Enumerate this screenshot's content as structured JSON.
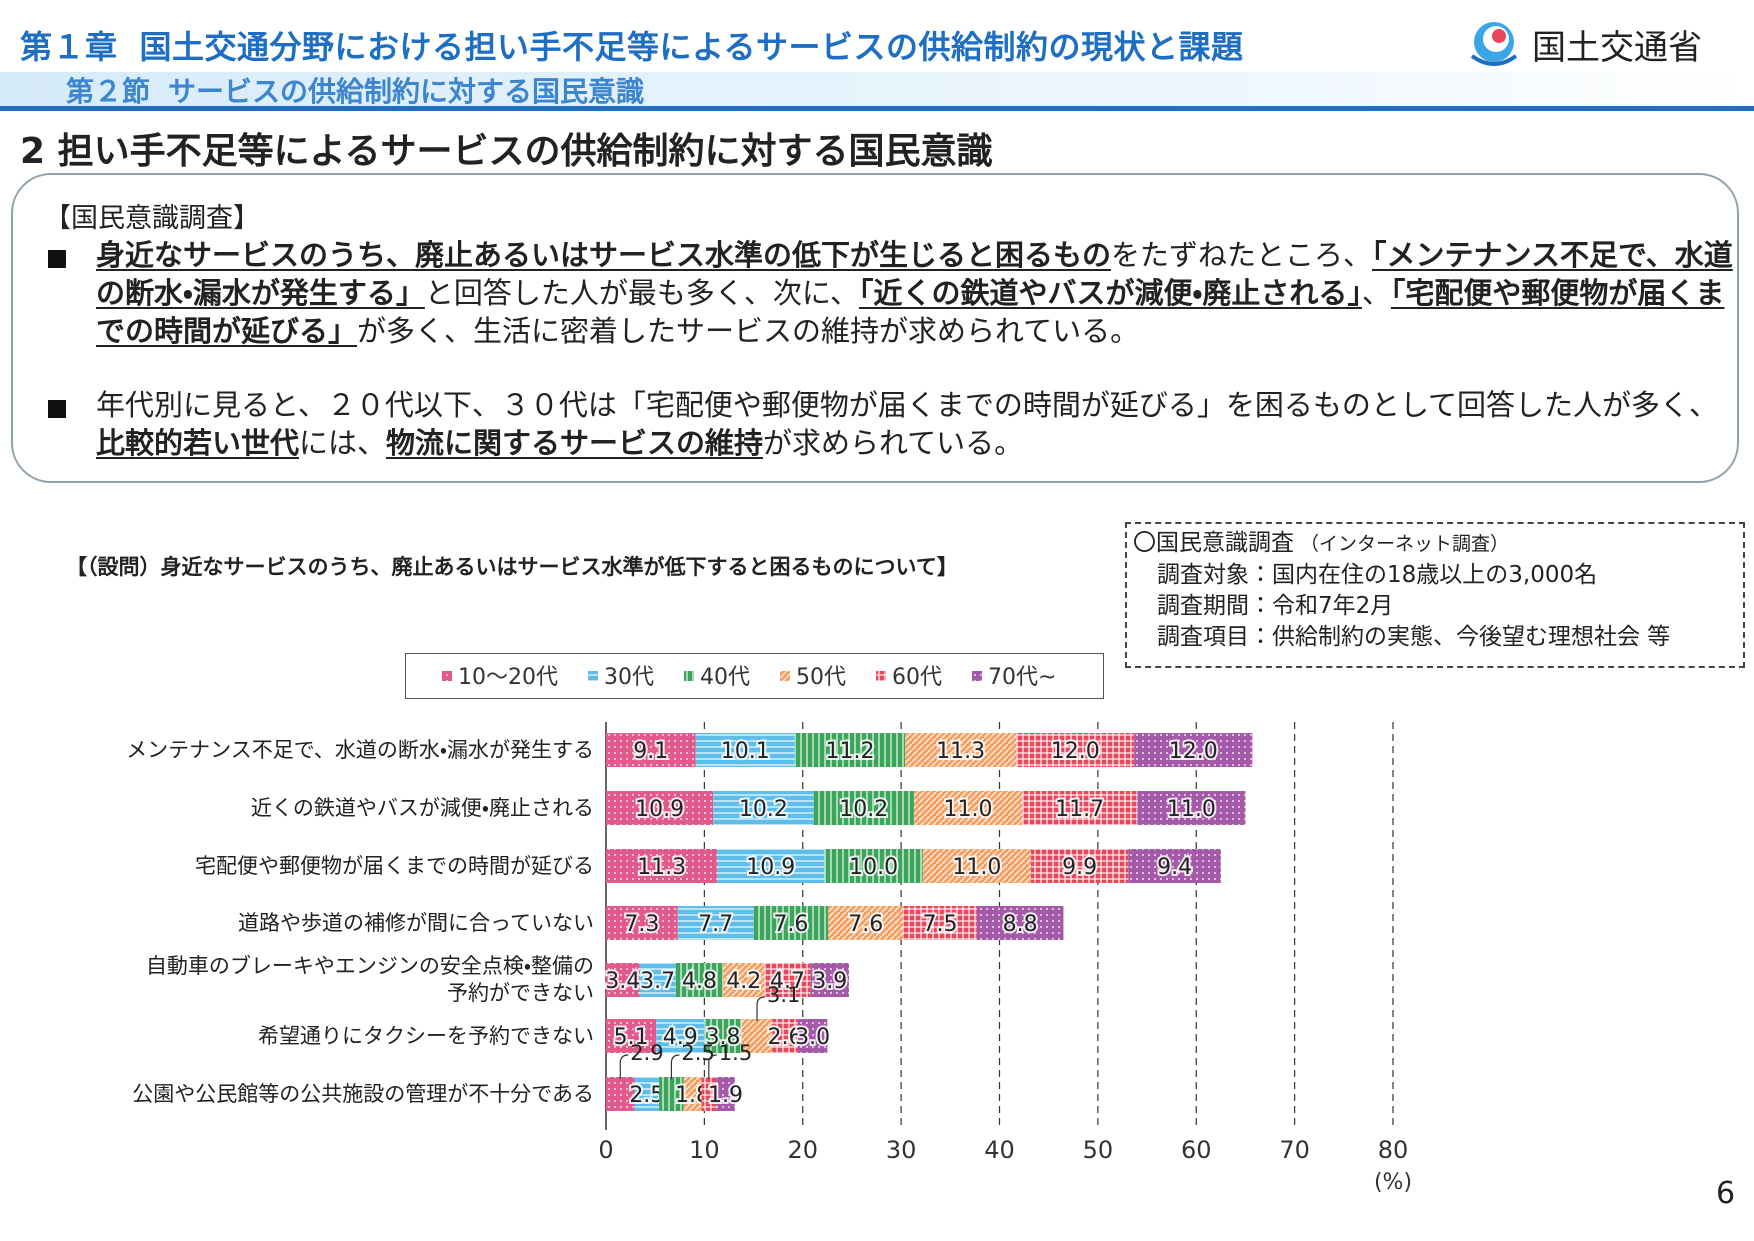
{
  "header": {
    "chapter": "第１章",
    "chapter_title": "国土交通分野における担い手不足等によるサービスの供給制約の現状と課題",
    "ministry": "国土交通省",
    "section": "第２節",
    "section_title": "サービスの供給制約に対する国民意識"
  },
  "heading": "2 担い手不足等によるサービスの供給制約に対する国民意識",
  "summary": {
    "label": "【国民意識調査】",
    "bullets": [
      [
        {
          "text": "身近なサービスのうち、廃止あるいはサービス水準の低下が生じると困るもの",
          "underline": true
        },
        {
          "text": "をたずねたところ、",
          "underline": false
        },
        {
          "text": "「メンテナンス不足で、水道の断水・漏水が発生する」",
          "underline": true
        },
        {
          "text": "と回答した人が最も多く、次に、",
          "underline": false
        },
        {
          "text": "「近くの鉄道やバスが減便・廃止される」",
          "underline": true
        },
        {
          "text": "、",
          "underline": false
        },
        {
          "text": "「宅配便や郵便物が届くまでの時間が延びる」",
          "underline": true
        },
        {
          "text": "が多く、生活に密着したサービスの維持が求められている。",
          "underline": false
        }
      ],
      [
        {
          "text": "年代別に見ると、２０代以下、３０代は「宅配便や郵便物が届くまでの時間が延びる」を困るものとして回答した人が多く、",
          "underline": false
        },
        {
          "text": "比較的若い世代",
          "underline": true
        },
        {
          "text": "には、",
          "underline": false
        },
        {
          "text": "物流に関するサービスの維持",
          "underline": true
        },
        {
          "text": "が求められている。",
          "underline": false
        }
      ]
    ]
  },
  "survey": {
    "title": "〇国民意識調査",
    "note": "（インターネット調査）",
    "items": [
      "調査対象：国内在住の18歳以上の3,000名",
      "調査期間：令和7年2月",
      "調査項目：供給制約の実態、今後望む理想社会 等"
    ]
  },
  "page_number": "6",
  "chart_data": {
    "type": "bar",
    "orientation": "horizontal",
    "stacked": true,
    "title": "【（設問）身近なサービスのうち、廃止あるいはサービス水準が低下すると困るものについて】",
    "categories": [
      "メンテナンス不足で、水道の断水・漏水が発生する",
      "近くの鉄道やバスが減便・廃止される",
      "宅配便や郵便物が届くまでの時間が延びる",
      "道路や歩道の補修が間に合っていない",
      "自動車のブレーキやエンジンの安全点検・整備の\n予約ができない",
      "希望通りにタクシーを予約できない",
      "公園や公民館等の公共施設の管理が不十分である"
    ],
    "series": [
      {
        "name": "10～20代",
        "color": "#e25a8c",
        "pattern": "dots",
        "values": [
          9.1,
          10.9,
          11.3,
          7.3,
          3.4,
          5.1,
          2.9
        ],
        "value_labels": [
          "9.1",
          "10.9",
          "11.3",
          "7.3",
          "3.4",
          "5.1",
          "2.9"
        ]
      },
      {
        "name": "30代",
        "color": "#5fbde9",
        "pattern": "hstripes",
        "values": [
          10.1,
          10.2,
          10.9,
          7.7,
          3.7,
          4.9,
          2.5
        ],
        "value_labels": [
          "10.1",
          "10.2",
          "10.9",
          "7.7",
          "3.7",
          "4.9",
          "2.5"
        ]
      },
      {
        "name": "40代",
        "color": "#3ba55c",
        "pattern": "vstripes",
        "values": [
          11.2,
          10.2,
          10.0,
          7.6,
          4.8,
          3.8,
          2.5
        ],
        "value_labels": [
          "11.2",
          "10.2",
          "10.0",
          "7.6",
          "4.8",
          "3.8",
          "2.5"
        ]
      },
      {
        "name": "50代",
        "color": "#f4a062",
        "pattern": "diagonal",
        "values": [
          11.3,
          11.0,
          11.0,
          7.6,
          4.2,
          3.1,
          1.8
        ],
        "value_labels": [
          "11.3",
          "11.0",
          "11.0",
          "7.6",
          "4.2",
          "3.1",
          "1.8"
        ]
      },
      {
        "name": "60代",
        "color": "#e8475c",
        "pattern": "grid",
        "values": [
          12.0,
          11.7,
          9.9,
          7.5,
          4.7,
          2.6,
          1.5
        ],
        "value_labels": [
          "12.0",
          "11.7",
          "9.9",
          "7.5",
          "4.7",
          "2.6",
          "1.5"
        ]
      },
      {
        "name": "70代~",
        "color": "#a45aa8",
        "pattern": "dots",
        "values": [
          12.0,
          11.0,
          9.4,
          8.8,
          3.9,
          3.0,
          1.9
        ],
        "value_labels": [
          "12.0",
          "11.0",
          "9.4",
          "8.8",
          "3.9",
          "3.0",
          "1.9"
        ]
      }
    ],
    "xlim": [
      0,
      80
    ],
    "xticks": [
      0,
      10,
      20,
      30,
      40,
      50,
      60,
      70,
      80
    ],
    "x_unit": "(%)",
    "grid": true,
    "legend": "top"
  }
}
